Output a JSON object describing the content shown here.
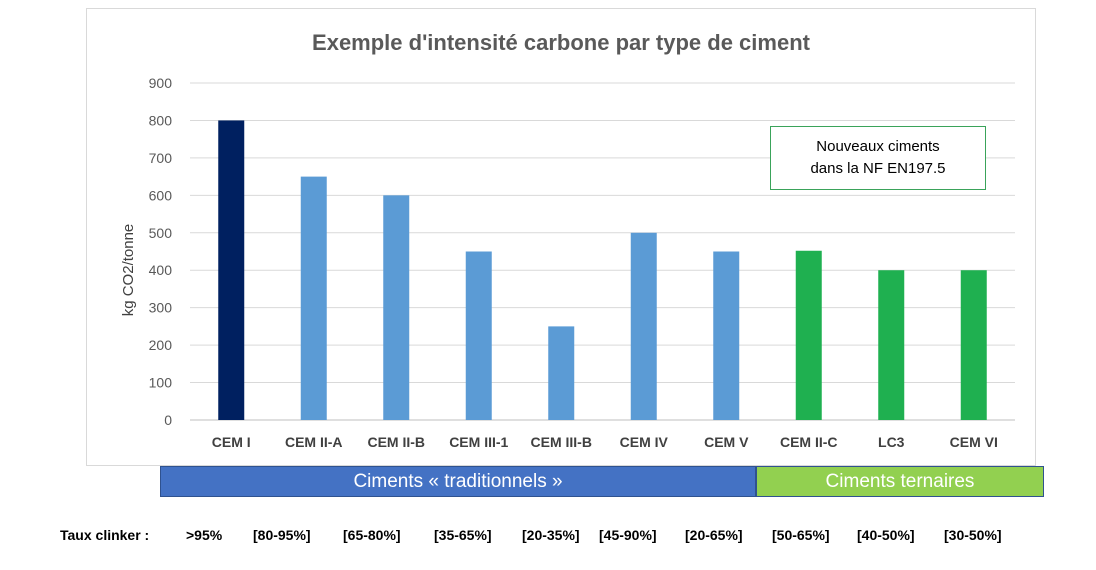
{
  "chart_data": {
    "type": "bar",
    "title": "Exemple d'intensité carbone par type de ciment",
    "ylabel": "kg CO2/tonne",
    "xlabel": "",
    "ylim": [
      0,
      900
    ],
    "yticks": [
      0,
      100,
      200,
      300,
      400,
      500,
      600,
      700,
      800,
      900
    ],
    "grid": true,
    "categories": [
      "CEM I",
      "CEM II-A",
      "CEM II-B",
      "CEM III-1",
      "CEM III-B",
      "CEM IV",
      "CEM V",
      "CEM II-C",
      "LC3",
      "CEM VI"
    ],
    "values": [
      800,
      650,
      600,
      450,
      250,
      500,
      450,
      452,
      400,
      400
    ],
    "bar_colors": [
      "#002060",
      "#5b9bd5",
      "#5b9bd5",
      "#5b9bd5",
      "#5b9bd5",
      "#5b9bd5",
      "#5b9bd5",
      "#1fb050",
      "#1fb050",
      "#1fb050"
    ]
  },
  "annotation": {
    "line1": "Nouveaux ciments",
    "line2": "dans la NF EN197.5"
  },
  "groups": {
    "traditional": "Ciments « traditionnels »",
    "ternary": "Ciments ternaires"
  },
  "clinker": {
    "label": "Taux clinker :",
    "rates": [
      ">95%",
      "[80-95%]",
      "[65-80%]",
      "[35-65%]",
      "[20-35%]",
      "[45-90%]",
      "[20-65%]",
      "[50-65%]",
      "[40-50%]",
      "[30-50%]"
    ]
  }
}
